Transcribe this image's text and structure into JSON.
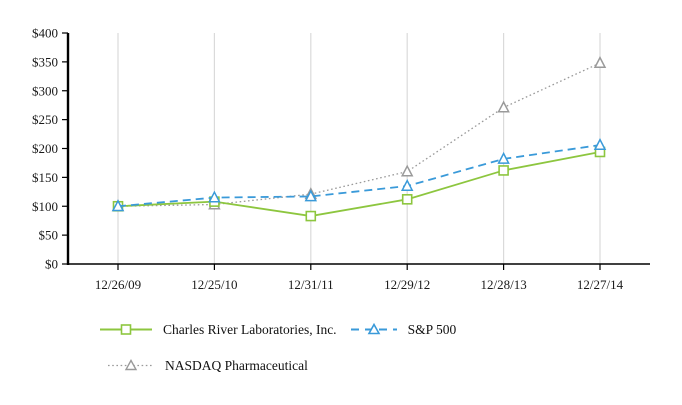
{
  "chart_data": {
    "type": "line",
    "title": "",
    "xlabel": "",
    "ylabel": "",
    "x_categories": [
      "12/26/09",
      "12/25/10",
      "12/31/11",
      "12/29/12",
      "12/28/13",
      "12/27/14"
    ],
    "y_ticks": [
      0,
      50,
      100,
      150,
      200,
      250,
      300,
      350,
      400
    ],
    "y_tick_labels": [
      "$0",
      "$50",
      "$100",
      "$150",
      "$200",
      "$250",
      "$300",
      "$350",
      "$400"
    ],
    "ylim": [
      0,
      400
    ],
    "grid": "vertical-gridlines-only",
    "legend_position": "bottom-left",
    "series": [
      {
        "name": "Charles River Laboratories, Inc.",
        "marker": "square",
        "line_style": "solid",
        "color": "#8DC63F",
        "values": [
          100,
          108,
          83,
          112,
          162,
          194
        ]
      },
      {
        "name": "S&P 500",
        "marker": "triangle",
        "line_style": "dashed",
        "color": "#3A9AD9",
        "values": [
          100,
          115,
          117,
          135,
          182,
          206
        ]
      },
      {
        "name": "NASDAQ Pharmaceutical",
        "marker": "triangle",
        "line_style": "dotted",
        "color": "#9A9A9A",
        "values": [
          100,
          103,
          121,
          160,
          271,
          348
        ]
      }
    ]
  },
  "legend": {
    "items": [
      {
        "label": "Charles River Laboratories, Inc."
      },
      {
        "label": "S&P 500"
      },
      {
        "label": "NASDAQ Pharmaceutical"
      }
    ]
  },
  "colors": {
    "background": "#FFFFFF",
    "axis": "#000000",
    "grid": "#DADADA",
    "text": "#1A1A1A",
    "crl_green": "#8DC63F",
    "sp500_blue": "#3A9AD9",
    "nasdaq_gray": "#9A9A9A"
  }
}
